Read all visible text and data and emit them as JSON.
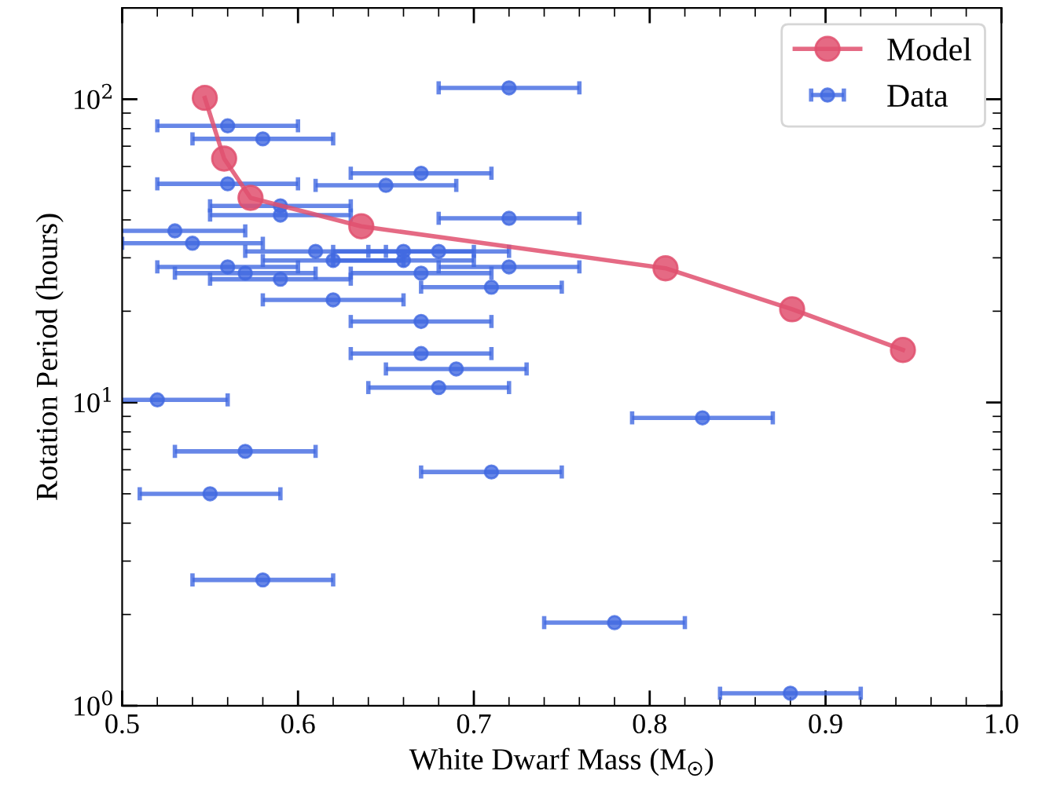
{
  "chart_data": {
    "type": "scatter",
    "xlabel": "White Dwarf Mass (M$_{☉}$)",
    "ylabel": "Rotation Period (hours)",
    "xlim": [
      0.5,
      1.0
    ],
    "xticks": [
      0.5,
      0.6,
      0.7,
      0.8,
      0.9,
      {
        "value": 1.0,
        "label": "1.0"
      }
    ],
    "ylim": [
      1,
      200
    ],
    "yticks": [
      {
        "value": 1,
        "label": "10$^{0}$"
      },
      {
        "value": 10,
        "label": "10$^{1}$"
      },
      {
        "value": 100,
        "label": "10$^{2}$"
      }
    ],
    "log": "y",
    "grid": false,
    "legend": "top right",
    "series": [
      {
        "name": "Model",
        "type": "line",
        "color": "#e0506e",
        "marker": "circle",
        "line_style": "solid",
        "x": [
          0.547,
          0.558,
          0.573,
          0.636,
          0.809,
          0.881,
          0.944
        ],
        "values": [
          101,
          63.7,
          47.3,
          38.1,
          27.7,
          20.3,
          14.9
        ]
      },
      {
        "name": "Data",
        "color": "#4169e1",
        "marker": "circle",
        "x": [
          0.72,
          0.56,
          0.58,
          0.56,
          0.65,
          0.67,
          0.59,
          0.59,
          0.72,
          0.53,
          0.54,
          0.61,
          0.66,
          0.68,
          0.62,
          0.66,
          0.56,
          0.72,
          0.57,
          0.67,
          0.59,
          0.71,
          0.62,
          0.67,
          0.67,
          0.69,
          0.68,
          0.52,
          0.83,
          0.57,
          0.71,
          0.55,
          0.58,
          0.78,
          0.88
        ],
        "values": [
          109,
          81.7,
          74,
          52.6,
          52,
          57,
          44.5,
          41.5,
          40.5,
          36.8,
          33.5,
          31.5,
          31.5,
          31.5,
          29.4,
          29.4,
          28,
          28,
          26.7,
          26.7,
          25.5,
          24,
          21.8,
          18.5,
          14.5,
          12.9,
          11.2,
          10.2,
          8.9,
          6.9,
          5.9,
          5.0,
          2.6,
          1.88,
          1.1
        ],
        "xerrors": [
          0.04,
          0.04,
          0.04,
          0.04,
          0.04,
          0.04,
          0.04,
          0.04,
          0.04,
          0.04,
          0.04,
          0.04,
          0.04,
          0.04,
          0.04,
          0.04,
          0.04,
          0.04,
          0.04,
          0.04,
          0.04,
          0.04,
          0.04,
          0.04,
          0.04,
          0.04,
          0.04,
          0.04,
          0.04,
          0.04,
          0.04,
          0.04,
          0.04,
          0.04,
          0.04
        ]
      }
    ]
  }
}
